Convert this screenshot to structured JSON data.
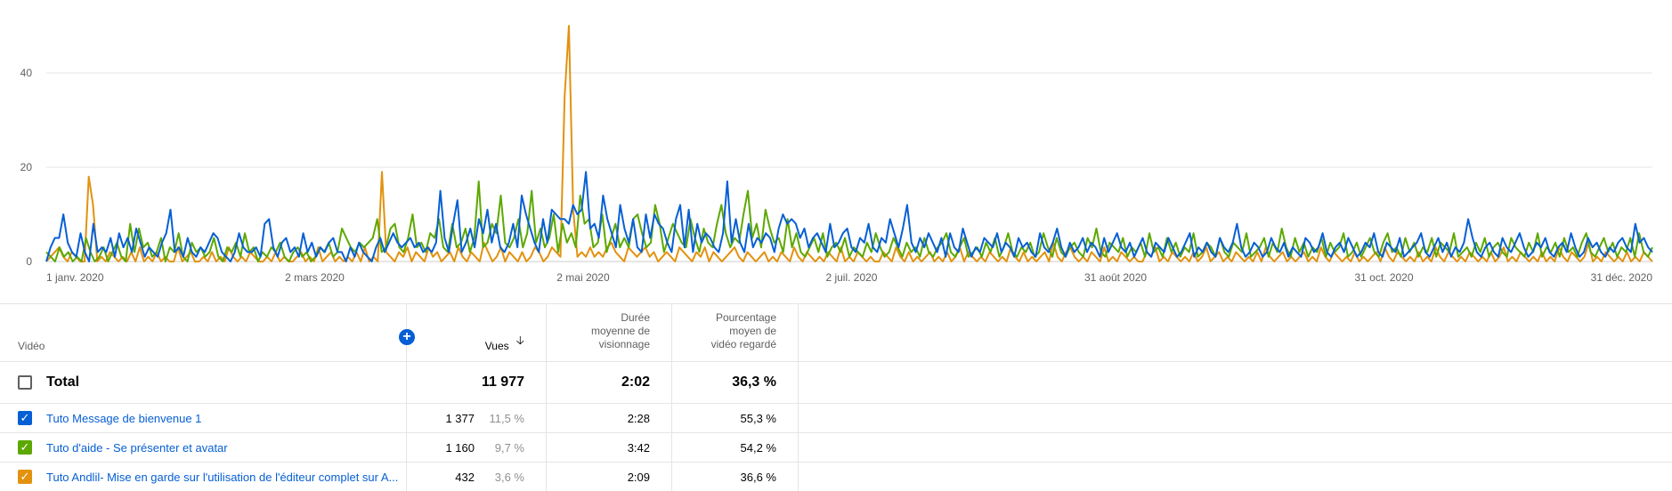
{
  "chart_data": {
    "type": "line",
    "ylim": [
      0,
      50
    ],
    "yticks": [
      0,
      20,
      40
    ],
    "grid": true,
    "x_tick_labels": [
      "1 janv. 2020",
      "2 mars 2020",
      "2 mai 2020",
      "2 juil. 2020",
      "31 août 2020",
      "31 oct. 2020",
      "31 déc. 2020"
    ],
    "x_tick_days": [
      0,
      61,
      122,
      183,
      243,
      304,
      365
    ],
    "series": [
      {
        "color": "#065fd4",
        "values": [
          0,
          3,
          5,
          5,
          10,
          4,
          2,
          1,
          6,
          2,
          0,
          8,
          2,
          3,
          2,
          5,
          1,
          6,
          3,
          5,
          2,
          7,
          4,
          1,
          3,
          2,
          1,
          4,
          6,
          11,
          2,
          3,
          1,
          5,
          2,
          1,
          3,
          2,
          4,
          6,
          5,
          2,
          1,
          0,
          2,
          6,
          3,
          2,
          2,
          3,
          1,
          8,
          9,
          3,
          1,
          4,
          5,
          2,
          3,
          1,
          6,
          2,
          4,
          1,
          3,
          2,
          4,
          5,
          2,
          2,
          0,
          3,
          1,
          4,
          2,
          1,
          0,
          3,
          5,
          2,
          4,
          6,
          4,
          3,
          4,
          5,
          3,
          4,
          2,
          3,
          2,
          4,
          15,
          5,
          2,
          8,
          13,
          2,
          4,
          7,
          3,
          9,
          6,
          11,
          4,
          8,
          3,
          2,
          4,
          8,
          3,
          14,
          10,
          7,
          4,
          2,
          9,
          4,
          11,
          10,
          9,
          9,
          8,
          12,
          10,
          11,
          19,
          7,
          8,
          5,
          14,
          9,
          6,
          3,
          12,
          7,
          4,
          9,
          3,
          2,
          10,
          5,
          10,
          8,
          7,
          4,
          2,
          9,
          12,
          3,
          11,
          2,
          8,
          4,
          6,
          5,
          3,
          2,
          6,
          17,
          4,
          9,
          4,
          2,
          8,
          3,
          5,
          4,
          6,
          5,
          2,
          7,
          10,
          8,
          9,
          8,
          5,
          7,
          3,
          5,
          6,
          4,
          2,
          8,
          3,
          4,
          6,
          7,
          3,
          2,
          5,
          4,
          8,
          3,
          2,
          5,
          4,
          9,
          6,
          3,
          7,
          12,
          4,
          2,
          5,
          3,
          6,
          4,
          2,
          5,
          1,
          6,
          3,
          2,
          7,
          4,
          1,
          3,
          2,
          5,
          4,
          3,
          6,
          2,
          4,
          3,
          1,
          5,
          3,
          4,
          2,
          1,
          6,
          3,
          2,
          4,
          7,
          3,
          1,
          4,
          2,
          3,
          5,
          2,
          4,
          3,
          1,
          5,
          2,
          4,
          6,
          3,
          2,
          4,
          1,
          3,
          5,
          2,
          1,
          4,
          3,
          2,
          5,
          3,
          1,
          2,
          4,
          6,
          1,
          3,
          2,
          4,
          2,
          1,
          5,
          3,
          2,
          4,
          8,
          3,
          1,
          2,
          4,
          3,
          1,
          2,
          5,
          3,
          2,
          4,
          1,
          3,
          2,
          1,
          5,
          4,
          2,
          3,
          6,
          2,
          1,
          3,
          4,
          2,
          5,
          3,
          1,
          2,
          4,
          3,
          6,
          2,
          1,
          4,
          3,
          2,
          5,
          1,
          2,
          3,
          4,
          6,
          2,
          1,
          3,
          5,
          2,
          4,
          1,
          3,
          2,
          4,
          9,
          5,
          2,
          1,
          3,
          4,
          2,
          1,
          5,
          3,
          2,
          4,
          6,
          3,
          1,
          2,
          4,
          3,
          5,
          2,
          1,
          3,
          4,
          2,
          6,
          3,
          1,
          2,
          5,
          3,
          4,
          2,
          1,
          3,
          2,
          4,
          5,
          3,
          2,
          8,
          4,
          5,
          3,
          2
        ],
        "name": "Tuto Message de bienvenue 1"
      },
      {
        "color": "#5ca800",
        "values": [
          2,
          1,
          0,
          3,
          1,
          2,
          0,
          1,
          0,
          5,
          2,
          0,
          1,
          3,
          0,
          2,
          4,
          1,
          0,
          8,
          2,
          7,
          3,
          4,
          1,
          2,
          5,
          0,
          3,
          2,
          6,
          1,
          0,
          4,
          2,
          3,
          1,
          2,
          5,
          1,
          0,
          3,
          2,
          4,
          1,
          6,
          2,
          3,
          0,
          2,
          1,
          3,
          2,
          4,
          1,
          0,
          2,
          3,
          1,
          2,
          0,
          1,
          3,
          2,
          4,
          1,
          2,
          7,
          5,
          3,
          2,
          4,
          3,
          4,
          5,
          9,
          2,
          3,
          7,
          8,
          3,
          2,
          5,
          10,
          3,
          4,
          2,
          6,
          5,
          9,
          3,
          2,
          8,
          3,
          4,
          7,
          2,
          5,
          17,
          3,
          4,
          8,
          6,
          14,
          4,
          3,
          5,
          9,
          3,
          6,
          15,
          4,
          7,
          3,
          5,
          10,
          2,
          8,
          4,
          6,
          3,
          14,
          8,
          9,
          3,
          4,
          10,
          2,
          5,
          8,
          3,
          5,
          3,
          9,
          10,
          6,
          3,
          4,
          12,
          8,
          2,
          5,
          8,
          6,
          4,
          3,
          9,
          5,
          2,
          7,
          4,
          3,
          8,
          12,
          6,
          3,
          5,
          4,
          10,
          15,
          5,
          8,
          3,
          11,
          7,
          4,
          5,
          2,
          9,
          3,
          6,
          2,
          1,
          3,
          5,
          2,
          6,
          1,
          3,
          4,
          2,
          5,
          1,
          3,
          2,
          1,
          4,
          2,
          6,
          3,
          1,
          2,
          5,
          3,
          1,
          4,
          2,
          3,
          1,
          5,
          2,
          1,
          3,
          4,
          6,
          2,
          1,
          3,
          5,
          1,
          2,
          3,
          1,
          4,
          2,
          5,
          1,
          3,
          6,
          2,
          1,
          3,
          2,
          4,
          1,
          2,
          6,
          3,
          1,
          5,
          2,
          1,
          3,
          4,
          2,
          1,
          5,
          3,
          7,
          2,
          1,
          4,
          3,
          2,
          5,
          1,
          3,
          2,
          4,
          1,
          6,
          2,
          3,
          1,
          5,
          2,
          4,
          1,
          3,
          2,
          6,
          1,
          2,
          4,
          3,
          1,
          5,
          2,
          1,
          4,
          3,
          2,
          6,
          1,
          2,
          3,
          5,
          1,
          4,
          2,
          7,
          3,
          1,
          5,
          2,
          4,
          1,
          3,
          2,
          5,
          1,
          4,
          2,
          3,
          6,
          1,
          2,
          4,
          1,
          3,
          5,
          2,
          1,
          4,
          6,
          2,
          3,
          1,
          5,
          2,
          4,
          1,
          3,
          2,
          5,
          1,
          4,
          3,
          2,
          6,
          1,
          2,
          3,
          1,
          4,
          2,
          5,
          1,
          3,
          4,
          2,
          1,
          5,
          3,
          2,
          1,
          4,
          2,
          6,
          1,
          3,
          2,
          4,
          1,
          5,
          2,
          3,
          1,
          4,
          6,
          2,
          1,
          3,
          5,
          2,
          4,
          1,
          3,
          2,
          5,
          1,
          6,
          2,
          1,
          3
        ],
        "name": "Tuto d'aide - Se présenter et avatar"
      },
      {
        "color": "#e2920f",
        "values": [
          0,
          1,
          2,
          3,
          1,
          0,
          2,
          1,
          0,
          0,
          18,
          12,
          0,
          1,
          0,
          2,
          1,
          0,
          1,
          0,
          2,
          0,
          3,
          0,
          1,
          0,
          2,
          0,
          1,
          0,
          0,
          3,
          0,
          1,
          2,
          0,
          0,
          1,
          0,
          2,
          0,
          1,
          0,
          3,
          1,
          0,
          1,
          0,
          2,
          1,
          0,
          0,
          1,
          0,
          2,
          0,
          1,
          0,
          0,
          1,
          2,
          0,
          1,
          0,
          3,
          0,
          1,
          2,
          0,
          1,
          0,
          1,
          0,
          2,
          0,
          3,
          0,
          1,
          0,
          19,
          2,
          1,
          0,
          2,
          1,
          3,
          0,
          2,
          1,
          0,
          3,
          1,
          2,
          0,
          1,
          2,
          0,
          3,
          1,
          0,
          2,
          1,
          0,
          4,
          2,
          0,
          1,
          3,
          0,
          2,
          1,
          0,
          2,
          0,
          1,
          3,
          2,
          0,
          1,
          3,
          2,
          1,
          35,
          50,
          11,
          1,
          2,
          1,
          3,
          1,
          2,
          1,
          3,
          4,
          2,
          1,
          0,
          3,
          2,
          1,
          2,
          3,
          1,
          2,
          0,
          1,
          2,
          1,
          0,
          3,
          2,
          1,
          0,
          2,
          1,
          3,
          0,
          2,
          1,
          0,
          1,
          2,
          3,
          1,
          0,
          2,
          1,
          0,
          1,
          2,
          0,
          1,
          0,
          2,
          1,
          0,
          3,
          1,
          0,
          2,
          1,
          0,
          1,
          0,
          2,
          1,
          0,
          3,
          0,
          1,
          0,
          2,
          1,
          0,
          1,
          0,
          0,
          2,
          1,
          0,
          3,
          1,
          0,
          2,
          0,
          1,
          0,
          1,
          2,
          0,
          1,
          0,
          2,
          0,
          1,
          3,
          0,
          2,
          1,
          0,
          1,
          0,
          2,
          1,
          0,
          1,
          0,
          3,
          1,
          0,
          2,
          0,
          1,
          0,
          1,
          2,
          0,
          4,
          1,
          0,
          2,
          3,
          1,
          0,
          1,
          0,
          2,
          1,
          0,
          3,
          0,
          1,
          0,
          2,
          1,
          0,
          1,
          0,
          0,
          2,
          1,
          3,
          0,
          1,
          0,
          2,
          1,
          0,
          1,
          0,
          2,
          0,
          1,
          3,
          0,
          1,
          2,
          0,
          1,
          0,
          2,
          1,
          0,
          1,
          0,
          2,
          0,
          3,
          1,
          0,
          1,
          2,
          0,
          1,
          0,
          1,
          2,
          0,
          1,
          0,
          3,
          1,
          0,
          2,
          1,
          0,
          1,
          0,
          2,
          0,
          1,
          0,
          1,
          2,
          0,
          3,
          1,
          0,
          2,
          1,
          0,
          1,
          0,
          2,
          0,
          1,
          0,
          3,
          1,
          0,
          2,
          1,
          0,
          1,
          0,
          2,
          1,
          0,
          1,
          0,
          2,
          0,
          1,
          3,
          0,
          1,
          0,
          2,
          1,
          0,
          1,
          0,
          2,
          0,
          1,
          0,
          3,
          1,
          0,
          2,
          1,
          0,
          1,
          4,
          0,
          1,
          0,
          2,
          1,
          0,
          1,
          0,
          2,
          0,
          1,
          0,
          2,
          1,
          0
        ],
        "name": "Tuto Andlil- Mise en garde sur l'utilisation de l'éditeur complet sur A..."
      }
    ]
  },
  "table": {
    "headers": {
      "video": "Vidéo",
      "views": "Vues",
      "avg_duration": [
        "Durée",
        "moyenne de",
        "visionnage"
      ],
      "avg_percent": [
        "Pourcentage",
        "moyen de",
        "vidéo regardé"
      ]
    },
    "total": {
      "label": "Total",
      "views": "11 977",
      "avg_duration": "2:02",
      "avg_percent": "36,3 %"
    },
    "rows": [
      {
        "title": "Tuto Message de bienvenue 1",
        "views": "1 377",
        "share": "11,5 %",
        "avg_duration": "2:28",
        "avg_percent": "55,3 %",
        "color": "#065fd4"
      },
      {
        "title": "Tuto d'aide - Se présenter et avatar",
        "views": "1 160",
        "share": "9,7 %",
        "avg_duration": "3:42",
        "avg_percent": "54,2 %",
        "color": "#5ca800"
      },
      {
        "title": "Tuto Andlil- Mise en garde sur l'utilisation de l'éditeur complet sur A...",
        "views": "432",
        "share": "3,6 %",
        "avg_duration": "2:09",
        "avg_percent": "36,6 %",
        "color": "#e2920f"
      }
    ]
  }
}
